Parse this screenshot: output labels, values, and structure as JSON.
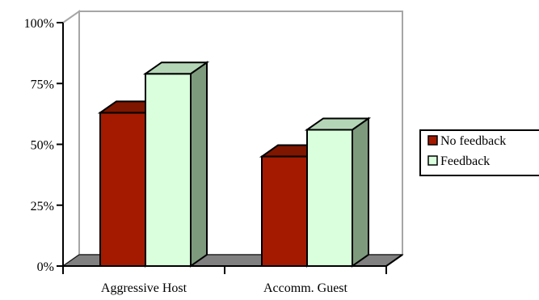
{
  "chart_data": {
    "type": "bar",
    "style": "3d-clustered",
    "categories": [
      "Aggressive Host",
      "Accomm. Guest"
    ],
    "series": [
      {
        "name": "No feedback",
        "values": [
          63,
          45
        ],
        "color": "#A31A00"
      },
      {
        "name": "Feedback",
        "values": [
          79,
          56
        ],
        "color": "#D9FFDD"
      }
    ],
    "ylim": [
      0,
      100
    ],
    "y_ticks": [
      "0%",
      "25%",
      "50%",
      "75%",
      "100%"
    ],
    "y_tick_values": [
      0,
      25,
      50,
      75,
      100
    ],
    "grid": false,
    "legend_position": "right",
    "title": "",
    "xlabel": "",
    "ylabel": "",
    "colors": {
      "floor": "#808080",
      "walls": "#a6a6a6",
      "no_feedback_side": "#5a0f00",
      "no_feedback_top": "#7e1600",
      "feedback_side": "#7d9a7d",
      "feedback_top": "#b4d6b6"
    }
  }
}
